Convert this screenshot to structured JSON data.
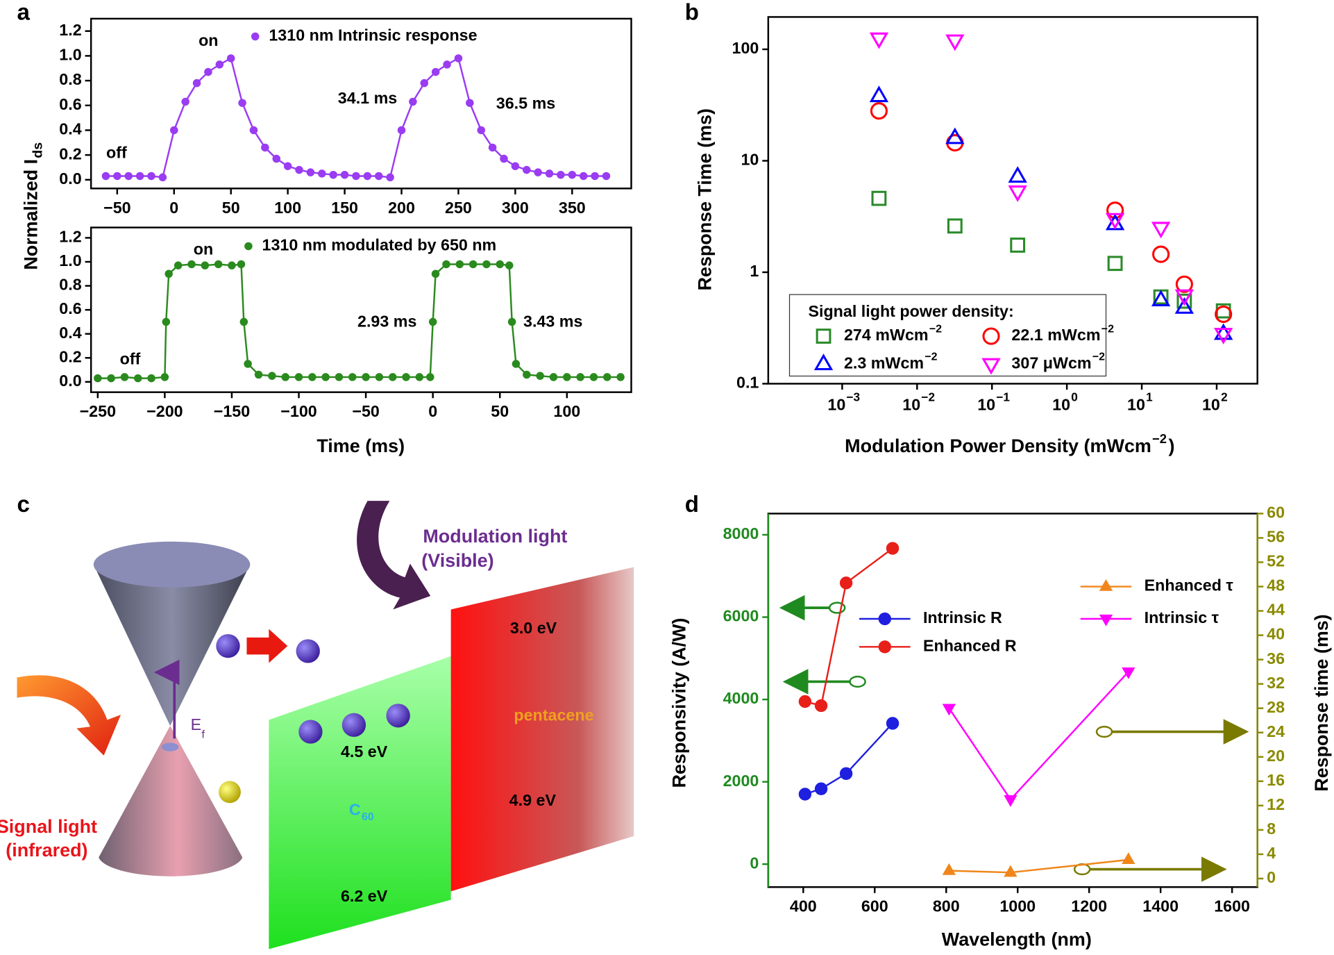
{
  "chart_data": [
    {
      "type": "line",
      "panel_label": "a",
      "filled": true,
      "y_label": "Normalized I",
      "y_label_sub": "ds",
      "xlim": [
        -73,
        402
      ],
      "ylim": [
        -0.07,
        1.3
      ],
      "xticks": [
        {
          "value": -50,
          "label": "−50"
        },
        0,
        50,
        100,
        150,
        200,
        250,
        300,
        350
      ],
      "yticks": [
        {
          "value": 0,
          "label": "0.0"
        },
        0.2,
        0.4,
        0.6,
        0.8,
        {
          "value": 1,
          "label": "1.0"
        },
        1.2
      ],
      "series": [
        {
          "name": "1310 nm Intrinsic response",
          "color": "#9a3cf2",
          "marker": "circle",
          "x": [
            -60,
            -50,
            -40,
            -30,
            -20,
            -10,
            0,
            10,
            20,
            30,
            40,
            50,
            60,
            70,
            80,
            90,
            100,
            110,
            120,
            130,
            140,
            150,
            160,
            170,
            180,
            190,
            200,
            210,
            220,
            230,
            240,
            250,
            260,
            270,
            280,
            290,
            300,
            310,
            320,
            330,
            340,
            350,
            360,
            370,
            380
          ],
          "values": [
            0.03,
            0.03,
            0.03,
            0.03,
            0.03,
            0.02,
            0.4,
            0.63,
            0.78,
            0.87,
            0.93,
            0.98,
            0.62,
            0.4,
            0.26,
            0.17,
            0.11,
            0.08,
            0.06,
            0.05,
            0.04,
            0.04,
            0.03,
            0.03,
            0.03,
            0.02,
            0.4,
            0.63,
            0.78,
            0.87,
            0.93,
            0.98,
            0.62,
            0.4,
            0.26,
            0.17,
            0.11,
            0.08,
            0.06,
            0.05,
            0.04,
            0.04,
            0.03,
            0.03,
            0.03
          ]
        }
      ],
      "annotations": [
        "off",
        "on",
        "34.1 ms",
        "36.5 ms"
      ]
    },
    {
      "type": "line",
      "filled": true,
      "x_label": "Time (ms)",
      "xlim": [
        -255,
        148
      ],
      "ylim": [
        -0.086,
        1.286
      ],
      "xticks": [
        {
          "value": -250,
          "label": "−250"
        },
        {
          "value": -200,
          "label": "−200"
        },
        {
          "value": -150,
          "label": "−150"
        },
        {
          "value": -100,
          "label": "−100"
        },
        {
          "value": -50,
          "label": "−50"
        },
        0,
        50,
        100
      ],
      "yticks": [
        {
          "value": 0,
          "label": "0.0"
        },
        0.2,
        0.4,
        0.6,
        0.8,
        {
          "value": 1,
          "label": "1.0"
        },
        1.2
      ],
      "series": [
        {
          "name": "1310 nm modulated by 650 nm",
          "color": "#2a8a1e",
          "marker": "circle",
          "x": [
            -250,
            -240,
            -230,
            -220,
            -210,
            -200,
            -199,
            -197,
            -190,
            -180,
            -170,
            -160,
            -150,
            -143,
            -141,
            -138,
            -130,
            -120,
            -110,
            -100,
            -90,
            -80,
            -70,
            -60,
            -50,
            -40,
            -30,
            -20,
            -10,
            -2,
            0,
            2,
            10,
            20,
            30,
            40,
            50,
            57,
            59,
            62,
            70,
            80,
            90,
            100,
            110,
            120,
            130,
            140
          ],
          "values": [
            0.03,
            0.03,
            0.04,
            0.03,
            0.03,
            0.04,
            0.5,
            0.9,
            0.97,
            0.98,
            0.97,
            0.98,
            0.97,
            0.98,
            0.5,
            0.15,
            0.06,
            0.05,
            0.04,
            0.04,
            0.04,
            0.04,
            0.04,
            0.04,
            0.04,
            0.04,
            0.04,
            0.04,
            0.04,
            0.04,
            0.5,
            0.9,
            0.98,
            0.98,
            0.98,
            0.98,
            0.98,
            0.97,
            0.5,
            0.15,
            0.06,
            0.05,
            0.04,
            0.04,
            0.04,
            0.04,
            0.04,
            0.04
          ]
        }
      ],
      "annotations": [
        "off",
        "on",
        "2.93 ms",
        "3.43 ms"
      ]
    },
    {
      "type": "scatter",
      "panel_label": "b",
      "filled": false,
      "xlog": true,
      "ylog": true,
      "xlim": [
        0.000103,
        350
      ],
      "ylim": [
        0.1,
        195
      ],
      "y_label": "Response Time (ms)",
      "x_label": "Modulation Power Density (mWcm",
      "x_label_sup": "−2",
      "x_label_end": ")",
      "xticks": [
        {
          "value": 0.001,
          "label": "10",
          "sup": "−3"
        },
        {
          "value": 0.01,
          "label": "10",
          "sup": "−2"
        },
        {
          "value": 0.1,
          "label": "10",
          "sup": "−1"
        },
        {
          "value": 1,
          "label": "10",
          "sup": "0"
        },
        {
          "value": 10,
          "label": "10",
          "sup": "1"
        },
        {
          "value": 100,
          "label": "10",
          "sup": "2"
        }
      ],
      "yticks": [
        0.1,
        1,
        10,
        100
      ],
      "legend_title": "Signal light power density:",
      "series": [
        {
          "name": "274 mWcm",
          "name_sup": "−2",
          "color": "#2a8a2a",
          "marker": "square",
          "x": [
            0.0031,
            0.032,
            0.22,
            4.4,
            18,
            37,
            123
          ],
          "values": [
            4.6,
            2.6,
            1.75,
            1.2,
            0.6,
            0.55,
            0.45
          ]
        },
        {
          "name": "22.1 mWcm",
          "name_sup": "−2",
          "color": "#ff0000",
          "marker": "circle",
          "x": [
            0.0031,
            0.032,
            4.4,
            18,
            37,
            123
          ],
          "values": [
            28,
            14.5,
            3.6,
            1.45,
            0.78,
            0.42
          ]
        },
        {
          "name": "2.3 mWcm",
          "name_sup": "−2",
          "color": "#0000ff",
          "marker": "triangle-up",
          "x": [
            0.0031,
            0.032,
            0.22,
            4.4,
            18,
            37,
            123
          ],
          "values": [
            38,
            16,
            7.2,
            2.7,
            0.56,
            0.48,
            0.28
          ]
        },
        {
          "name": "307 μWcm",
          "name_sup": "−2",
          "color": "#ff00ff",
          "marker": "triangle-down",
          "x": [
            0.0031,
            0.032,
            0.22,
            4.4,
            18,
            37,
            123
          ],
          "values": [
            125,
            120,
            5.3,
            3.0,
            2.5,
            0.62,
            0.28
          ]
        }
      ]
    },
    {
      "type": "line",
      "panel_label": "d",
      "filled": true,
      "xlim": [
        302,
        1671
      ],
      "ylim": [
        -557,
        8515
      ],
      "y2lim": [
        -1.4,
        60
      ],
      "xticks": [
        400,
        600,
        800,
        1000,
        1200,
        1400,
        1600
      ],
      "yticks": [
        0,
        2000,
        4000,
        6000,
        8000
      ],
      "y2ticks": [
        0,
        4,
        8,
        12,
        16,
        20,
        24,
        28,
        32,
        36,
        40,
        44,
        48,
        52,
        56,
        60
      ],
      "x_label": "Wavelength (nm)",
      "y_label": "Responsivity (A/W)",
      "y2_label": "Response time (ms)",
      "y_axis_color": "#1f8a1f",
      "y2_axis_color": "#8a8a00",
      "series": [
        {
          "name": "Intrinsic R",
          "color": "#1f1fe0",
          "marker": "circle",
          "x": [
            405,
            450,
            520,
            650
          ],
          "values": [
            1700,
            1830,
            2200,
            3420
          ]
        },
        {
          "name": "Enhanced R",
          "color": "#e8201a",
          "marker": "circle",
          "x": [
            405,
            450,
            520,
            650
          ],
          "values": [
            3950,
            3850,
            6830,
            7670
          ]
        },
        {
          "name": "Enhanced τ",
          "color": "#f0861a",
          "marker": "triangle-up",
          "axis": "y2",
          "x": [
            808,
            980,
            1310
          ],
          "values": [
            1.3,
            1.0,
            3.1
          ]
        },
        {
          "name": "Intrinsic τ",
          "color": "#ff00ff",
          "marker": "triangle-down",
          "axis": "y2",
          "x": [
            808,
            980,
            1310
          ],
          "values": [
            28,
            13,
            34
          ]
        }
      ]
    }
  ],
  "diagram": {
    "panel_label": "c",
    "modulation_light": "Modulation light",
    "modulation_visible": "(Visible)",
    "signal_light": "Signal light",
    "signal_infrared": "(infrared)",
    "fermi": "E",
    "fermi_sub": "f",
    "c60_level_top": "4.5 eV",
    "c60_level_bottom": "6.2 eV",
    "c60": "C",
    "c60_sub": "60",
    "pentacene_top": "3.0 eV",
    "pentacene_bottom": "4.9 eV",
    "pentacene": "pentacene"
  }
}
